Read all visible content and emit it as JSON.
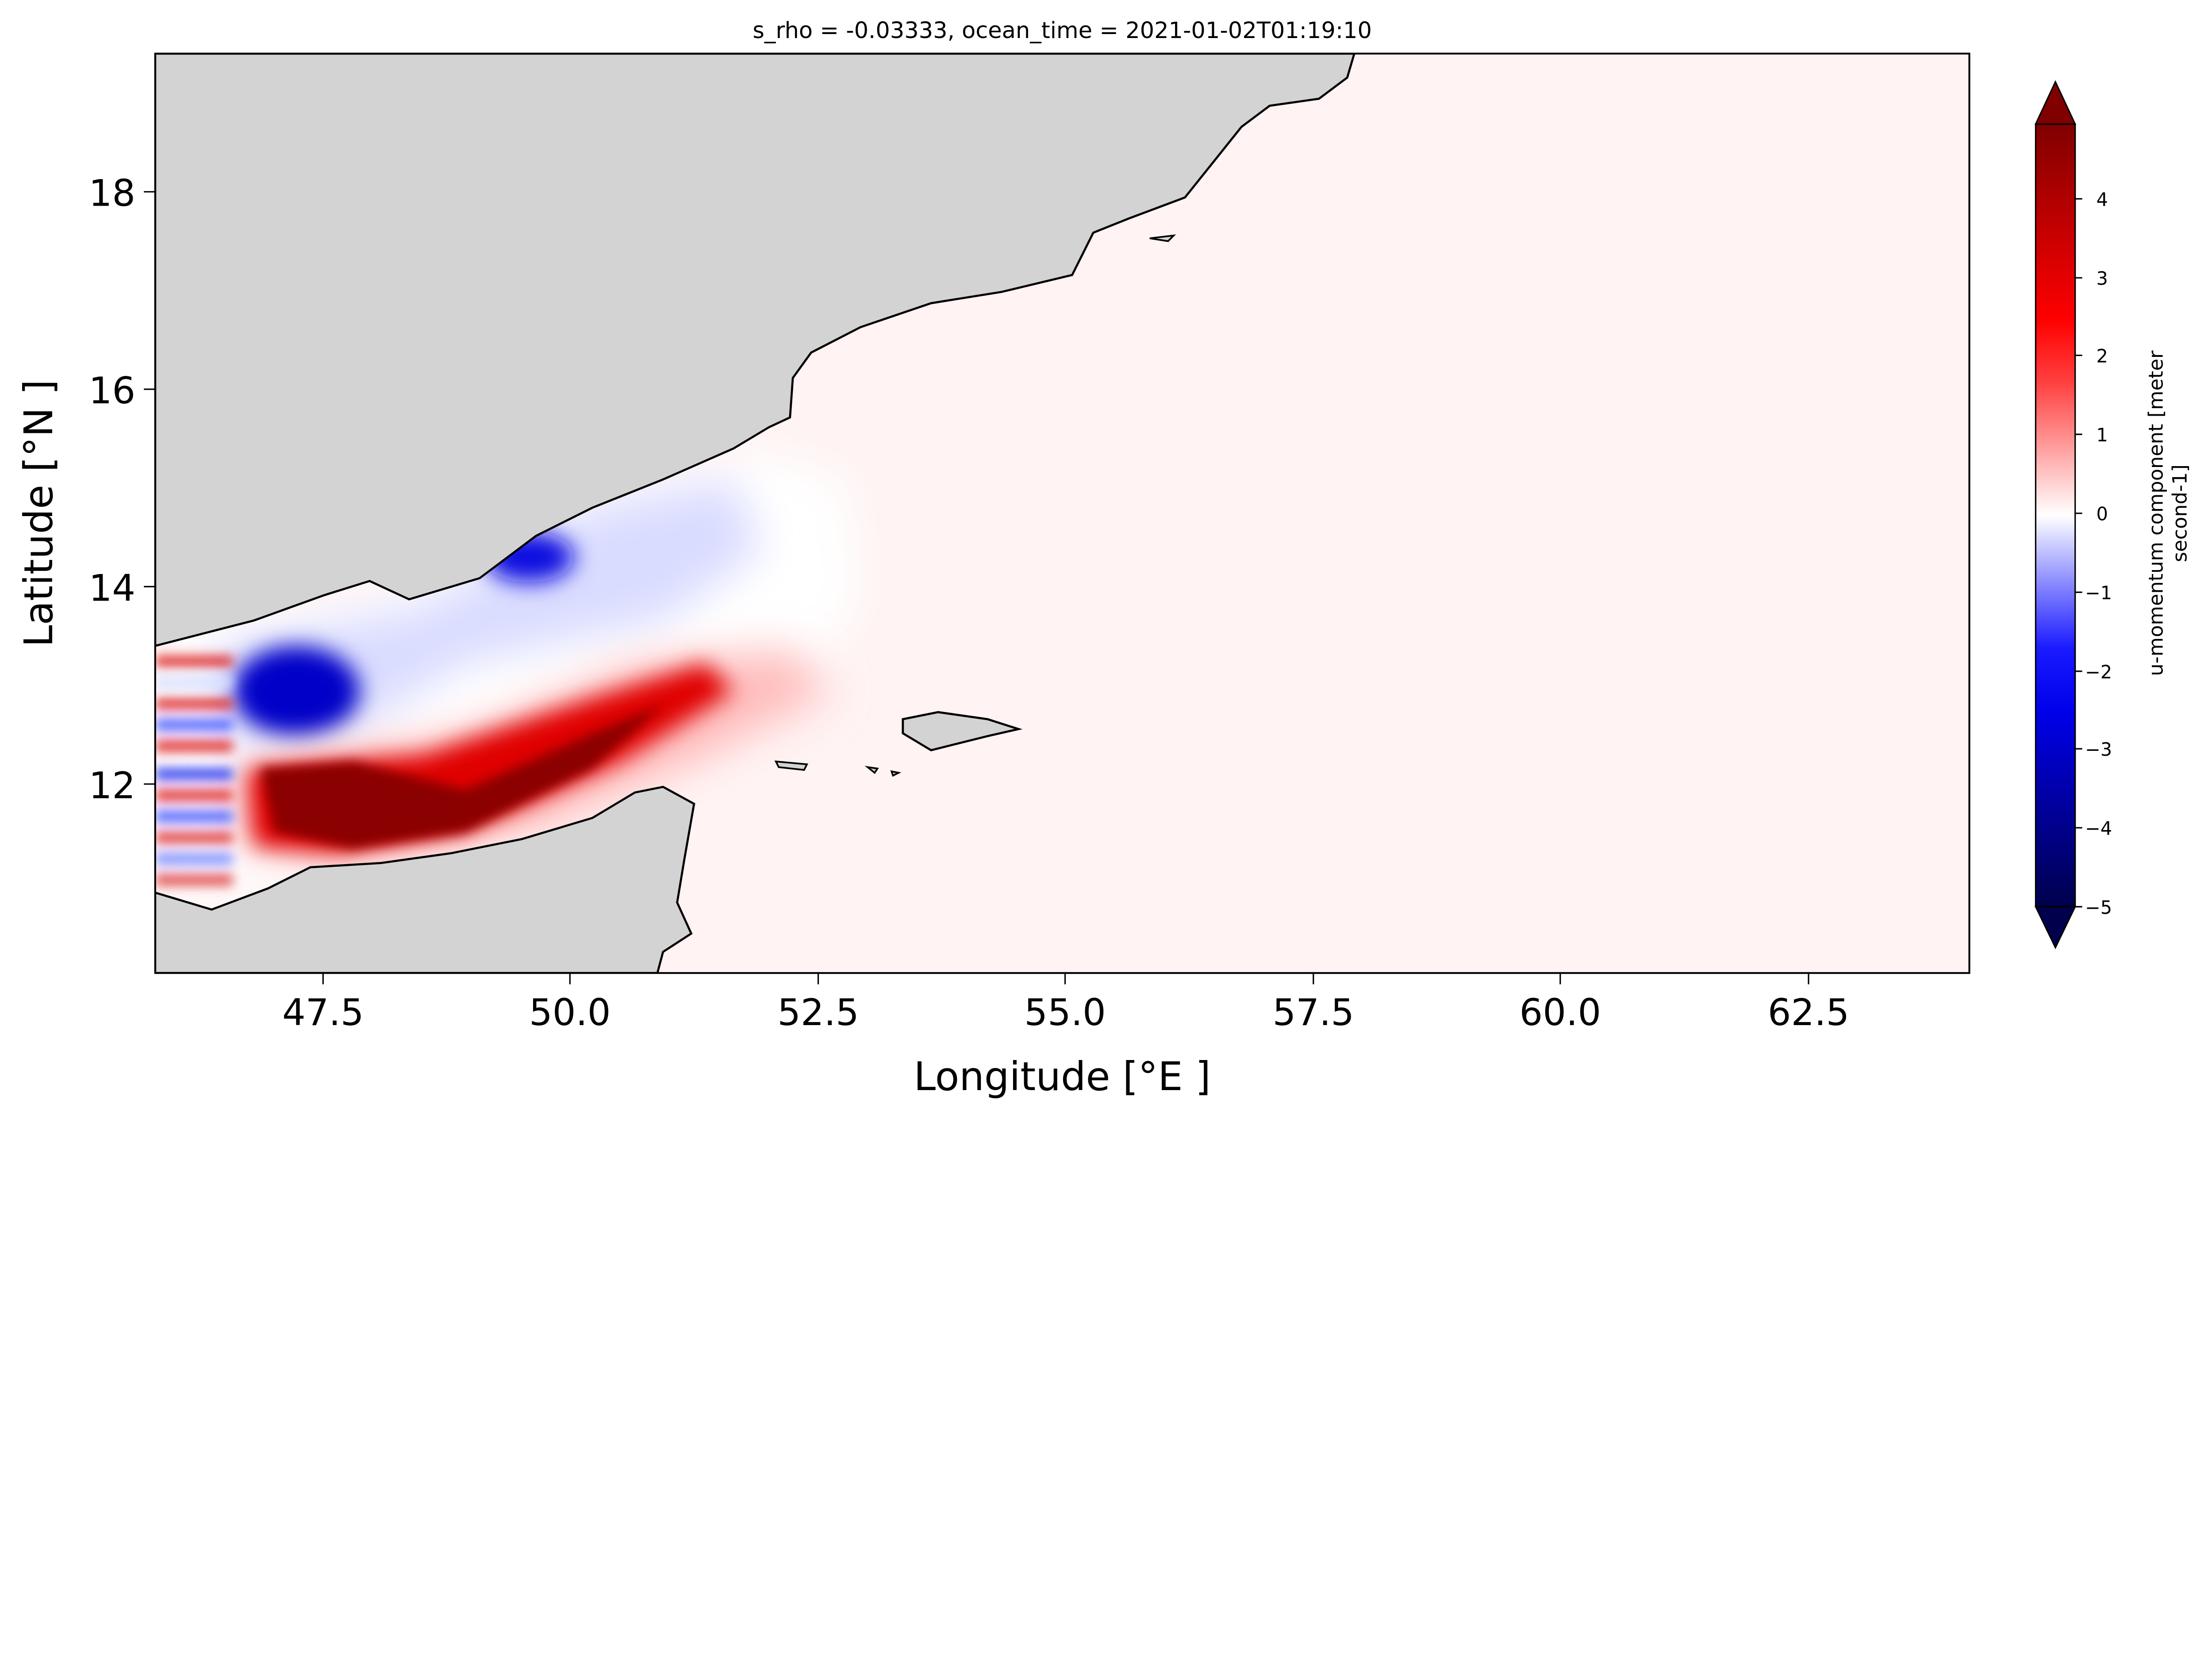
{
  "chart_data": {
    "type": "heatmap",
    "title": "s_rho = -0.03333, ocean_time = 2021-01-02T01:19:10",
    "xlabel": "Longitude [°E ]",
    "ylabel": "Latitude [°N ]",
    "xlim": [
      45.8,
      64.1
    ],
    "ylim": [
      10.1,
      19.4
    ],
    "xticks": [
      47.5,
      50.0,
      52.5,
      55.0,
      57.5,
      60.0,
      62.5
    ],
    "xtick_labels": [
      "47.5",
      "50.0",
      "52.5",
      "55.0",
      "57.5",
      "60.0",
      "62.5"
    ],
    "yticks": [
      12,
      14,
      16,
      18
    ],
    "ytick_labels": [
      "12",
      "14",
      "16",
      "18"
    ],
    "colorbar": {
      "label": "u-momentum component [meter second-1]",
      "label_lines": [
        "u-momentum component [meter",
        "second-1]"
      ],
      "colormap": "seismic",
      "range": [
        -5,
        5
      ],
      "extend": "both",
      "ticks": [
        4,
        3,
        2,
        1,
        0,
        -1,
        -2,
        -3,
        -4,
        -5
      ],
      "tick_labels": [
        "4",
        "3",
        "2",
        "1",
        "0",
        "−1",
        "−2",
        "−3",
        "−4",
        "−5"
      ]
    },
    "colors": {
      "land": "#d3d3d3",
      "ocean_background": "#fff3f3",
      "positive": "#8b0000",
      "negative": "#00008b"
    }
  }
}
